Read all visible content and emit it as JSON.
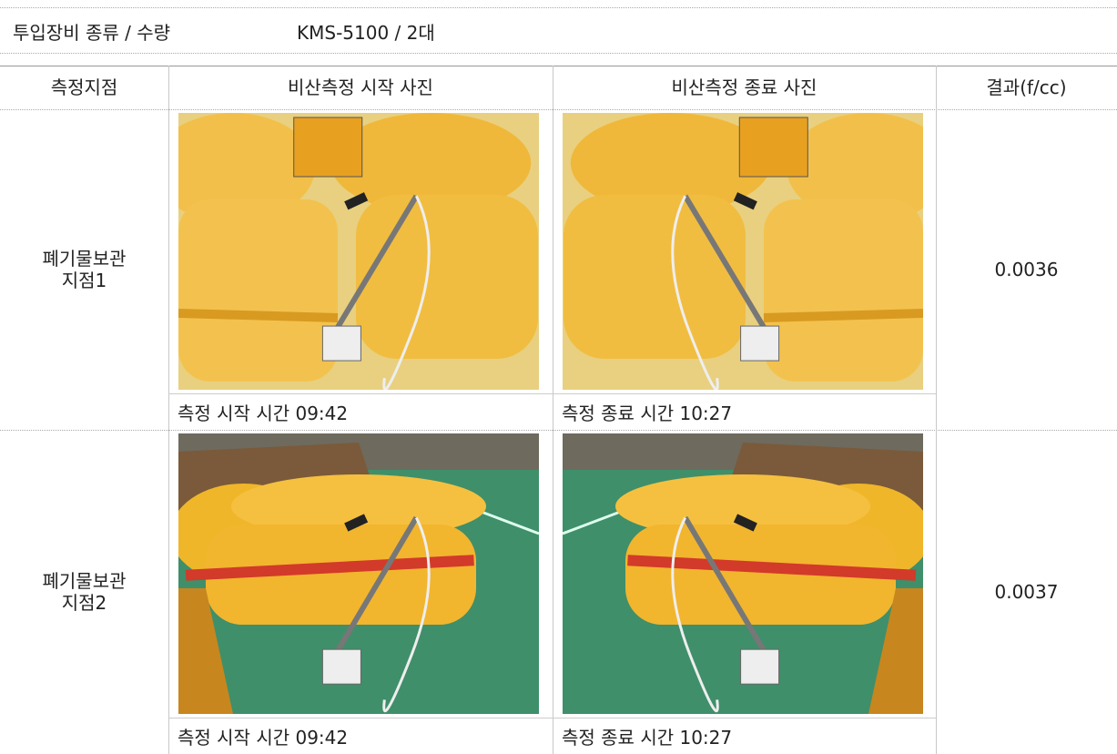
{
  "header": {
    "label": "투입장비 종류 / 수량",
    "value": "KMS-5100 / 2대"
  },
  "table": {
    "columns": [
      "측정지점",
      "비산측정 시작 사진",
      "비산측정 종료 사진",
      "결과(f/cc)"
    ],
    "rows": [
      {
        "site": [
          "폐기물보관",
          "지점1"
        ],
        "start_caption": "측정 시작 시간 09:42",
        "end_caption": "측정 종료 시간 10:27",
        "result": "0.0036"
      },
      {
        "site": [
          "폐기물보관",
          "지점2"
        ],
        "start_caption": "측정 시작 시간 09:42",
        "end_caption": "측정 종료 시간 10:27",
        "result": "0.0037"
      }
    ]
  }
}
